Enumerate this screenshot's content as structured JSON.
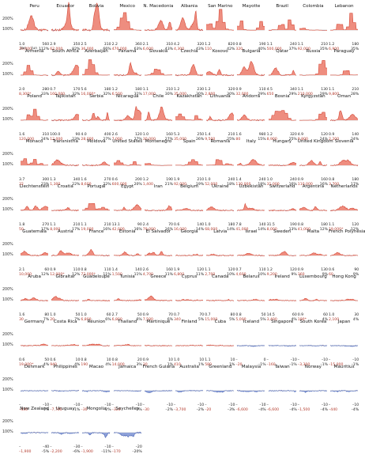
{
  "figure": {
    "y_axis_ticks": [
      "200%",
      "100%"
    ],
    "month_labels": [
      "Jan",
      "Jun"
    ]
  },
  "colors": {
    "blue": "#4b66b6",
    "red": "#d64c3b",
    "blue_fill": "#8fa2d9",
    "red_fill": "#ee8d7f",
    "axis": "#333333",
    "baseline": "#9a9a9a"
  },
  "chart_data": {
    "type": "area",
    "layout": "small-multiples",
    "y_ticks": [
      "200%",
      "100%"
    ],
    "x_ticks": [
      "Jan",
      "Jun"
    ],
    "rows": [
      [
        {
          "name": "Peru",
          "low": "1.0",
          "high": "560",
          "d1": "29,000",
          "d2": "112%"
        },
        {
          "name": "Ecuador",
          "low": "2.9",
          "high": "350",
          "d1": "62,000",
          "d2": "82%"
        },
        {
          "name": "Bolivia",
          "low": "2.5",
          "high": "310",
          "d1": "36,000",
          "d2": "66%"
        },
        {
          "name": "Mexico",
          "low": "2.2",
          "high": "360",
          "d1": "470,000",
          "d2": "63%"
        },
        {
          "name": "N. Macedonia",
          "low": "2.1",
          "high": "310",
          "d1": "6,600",
          "d2": "43%"
        },
        {
          "name": "Albania",
          "low": "4.2",
          "high": "320",
          "d1": "4,300",
          "d2": "43%"
        },
        {
          "name": "San Marino",
          "low": "1.2",
          "high": "820",
          "d1": "110",
          "d2": "42%"
        },
        {
          "name": "Mayotte",
          "low": "0.8",
          "high": "190",
          "d1": "320",
          "d2": "40%"
        },
        {
          "name": "Brazil",
          "low": "1.1",
          "high": "240",
          "d1": "500,000",
          "d2": "37%"
        },
        {
          "name": "Colombia",
          "low": "1.1",
          "high": "210",
          "d1": "92,000",
          "d2": "35%"
        },
        {
          "name": "Lebanon",
          "low": "1.2",
          "high": "180",
          "d1": "6,900",
          "d2": "35%"
        }
      ],
      [
        {
          "name": "Armenia",
          "low": "2.0",
          "high": "280",
          "d1": "8,300*",
          "d2": "33%"
        },
        {
          "name": "South Africa",
          "low": "0.7",
          "high": "170",
          "d1": "160,000",
          "d2": "32%"
        },
        {
          "name": "Azerbaijan",
          "low": "5.6",
          "high": "180",
          "d1": "16,000*",
          "d2": "32%"
        },
        {
          "name": "Panama",
          "low": "1.2",
          "high": "180",
          "d1": "6,500",
          "d2": "31%"
        },
        {
          "name": "Slovakia",
          "low": "1.1",
          "high": "210",
          "d1": "17,000",
          "d2": "30%"
        },
        {
          "name": "Czechia",
          "low": "1.2",
          "high": "230",
          "d1": "35,000",
          "d2": "30%"
        },
        {
          "name": "Kosovo",
          "low": "1.2",
          "high": "320",
          "d1": "2,800",
          "d2": "30%"
        },
        {
          "name": "Bulgaria",
          "low": "0.9",
          "high": "110",
          "d1": "32,000",
          "d2": "29%"
        },
        {
          "name": "Qatar",
          "low": "4.5",
          "high": "340",
          "d1": "650",
          "d2": "29%"
        },
        {
          "name": "Russia",
          "low": "1.1",
          "high": "130",
          "d1": "210,000",
          "d2": "29%"
        },
        {
          "name": "Paraguay",
          "low": "1.1",
          "high": "210",
          "d1": "9,800",
          "d2": "28%"
        }
      ],
      [
        {
          "name": "Poland",
          "low": "1.6",
          "high": "310",
          "d1": "120,000",
          "d2": "24%"
        },
        {
          "name": "Tajikistan",
          "low": "100.0",
          "high": "90",
          "d1": "12,000",
          "d2": "23%"
        },
        {
          "name": "Serbia",
          "low": "4.0",
          "high": "400",
          "d1": "28,000",
          "d2": "27%"
        },
        {
          "name": "Nicaragua",
          "low": "2.6",
          "high": "120",
          "d1": "7,000",
          "d2": "27%"
        },
        {
          "name": "Chile",
          "low": "1.0",
          "high": "160",
          "d1": "30,000",
          "d2": "27%"
        },
        {
          "name": "Kazakhstan",
          "low": "5.3",
          "high": "250",
          "d1": "35,000",
          "d2": "26%"
        },
        {
          "name": "Lithuania",
          "low": "1.4",
          "high": "210",
          "d1": "9,500",
          "d2": "25%"
        },
        {
          "name": "Andorra",
          "low": "1.6",
          "high": "980",
          "d1": "80",
          "d2": "15%"
        },
        {
          "name": "Bosnia",
          "low": "1.2",
          "high": "320",
          "d1": "8,900",
          "d2": "25%"
        },
        {
          "name": "Kyrgyzstan",
          "low": "4.9",
          "high": "120",
          "d1": "9,800",
          "d2": "24%"
        },
        {
          "name": "Oman",
          "low": "0.9",
          "high": "140",
          "d1": "2,200",
          "d2": "24%"
        }
      ],
      [
        {
          "name": "Monaco",
          "low": "3.7",
          "high": "300",
          "d1": "32",
          "d2": "23%"
        },
        {
          "name": "Transnistria",
          "low": "1.3",
          "high": "340",
          "d1": "1,300",
          "d2": "22%"
        },
        {
          "name": "Moldova",
          "low": "1.6",
          "high": "270",
          "d1": "8,600",
          "d2": "22%"
        },
        {
          "name": "United States",
          "low": "0.6",
          "high": "200",
          "d1": "600,000",
          "d2": "20%"
        },
        {
          "name": "Montenegro",
          "low": "1.2",
          "high": "190",
          "d1": "1,400",
          "d2": "21%"
        },
        {
          "name": "Spain",
          "low": "1.9",
          "high": "210",
          "d1": "92,000",
          "d2": "19%"
        },
        {
          "name": "Romania",
          "low": "1.0",
          "high": "240",
          "d1": "52,000",
          "d2": "18%"
        },
        {
          "name": "Italy",
          "low": "1.4",
          "high": "240",
          "d1": "130,000",
          "d2": "18%"
        },
        {
          "name": "Hungary",
          "low": "1.0",
          "high": "240",
          "d1": "31,000",
          "d2": "16%"
        },
        {
          "name": "United Kingdom",
          "low": "0.9",
          "high": "160",
          "d1": "110,000",
          "d2": "16%"
        },
        {
          "name": "Slovenia",
          "low": "0.8",
          "high": "180",
          "d1": "3,700",
          "d2": "17%"
        }
      ],
      [
        {
          "name": "Liechtenstein",
          "low": "1.8",
          "high": "270",
          "d1": "50",
          "d2": "17%"
        },
        {
          "name": "Croatia",
          "low": "1.1",
          "high": "210",
          "d1": "8,000",
          "d2": "17%"
        },
        {
          "name": "Portugal",
          "low": "1.1",
          "high": "210",
          "d1": "19,000",
          "d2": "16%"
        },
        {
          "name": "Egypt",
          "low": "13.1",
          "high": "90",
          "d1": "42,000",
          "d2": "16%"
        },
        {
          "name": "Iran",
          "low": "2.4",
          "high": "70",
          "d1": "79,000",
          "d2": "16%"
        },
        {
          "name": "Belgium",
          "low": "0.6",
          "high": "140",
          "d1": "16,000",
          "d2": "14%"
        },
        {
          "name": "Ukraine",
          "low": "1.0",
          "high": "180",
          "d1": "68,000",
          "d2": "14%"
        },
        {
          "name": "Uzbekistan",
          "low": "7.8",
          "high": "140",
          "d1": "41,000",
          "d2": "14%"
        },
        {
          "name": "Switzerland",
          "low": "31.5",
          "high": "190",
          "d1": "8,000",
          "d2": "13%"
        },
        {
          "name": "Argentina",
          "low": "0.8",
          "high": "180",
          "d1": "41,000",
          "d2": "12%"
        },
        {
          "name": "Netherlands",
          "low": "1.1",
          "high": "120",
          "d1": "19,000*",
          "d2": "12%"
        }
      ],
      [
        {
          "name": "Guatemala",
          "low": "2.1",
          "high": "60",
          "d1": "10,000",
          "d2": "12%"
        },
        {
          "name": "Austria",
          "low": "0.9",
          "high": "110",
          "d1": "12,000*",
          "d2": "12%"
        },
        {
          "name": "France",
          "low": "0.8",
          "high": "110",
          "d1": "72,000*",
          "d2": "11%"
        },
        {
          "name": "Estonia",
          "low": "1.4",
          "high": "140",
          "d1": "1,500",
          "d2": "11%"
        },
        {
          "name": "El Salvador",
          "low": "2.6",
          "high": "160",
          "d1": "4,700",
          "d2": "11%"
        },
        {
          "name": "Georgia",
          "low": "1.9",
          "high": "120",
          "d1": "6,800",
          "d2": "11%"
        },
        {
          "name": "Latvia",
          "low": "1.1",
          "high": "120",
          "d1": "2,700",
          "d2": "10%"
        },
        {
          "name": "Israel",
          "low": "0.7",
          "high": "110",
          "d1": "4,600",
          "d2": "10%"
        },
        {
          "name": "Sweden",
          "low": "1.2",
          "high": "120",
          "d1": "9,200",
          "d2": "9%"
        },
        {
          "name": "Malta",
          "low": "0.9",
          "high": "130",
          "d1": "360",
          "d2": "9%"
        },
        {
          "name": "French Polynesia",
          "low": "0.6",
          "high": "90",
          "d1": "60",
          "d2": "9%"
        }
      ],
      [
        {
          "name": "Aruba",
          "low": "1.6",
          "high": "80",
          "d1": "30",
          "d2": "7%"
        },
        {
          "name": "Gibraltar",
          "low": "1.0",
          "high": "50",
          "d1": "20",
          "d2": "7%"
        },
        {
          "name": "Guadeloupe",
          "low": "1.0",
          "high": "60",
          "d1": "6,800",
          "d2": "6%"
        },
        {
          "name": "Tunisia",
          "low": "2.7",
          "high": "50",
          "d1": "6,800",
          "d2": "6%"
        },
        {
          "name": "Greece",
          "low": "0.9",
          "high": "70",
          "d1": "7,500",
          "d2": "6%"
        },
        {
          "name": "Cyprus",
          "low": "0.7",
          "high": "70",
          "d1": "340",
          "d2": "5%"
        },
        {
          "name": "Canada",
          "low": "0.7",
          "high": "80",
          "d1": "15,000",
          "d2": "5%"
        },
        {
          "name": "Belarus",
          "low": "0.8",
          "high": "50",
          "d1": "5,000",
          "d2": "5%"
        },
        {
          "name": "Ireland",
          "low": "14.5",
          "high": "60",
          "d1": "3,400",
          "d2": "4%"
        },
        {
          "name": "Luxembourg",
          "low": "0.9",
          "high": "60",
          "d1": "190*",
          "d2": "4%"
        },
        {
          "name": "Hong Kong",
          "low": "1.0",
          "high": "30",
          "d1": "2,100",
          "d2": "4%"
        }
      ],
      [
        {
          "name": "Germany",
          "low": "0.6",
          "high": "50",
          "d1": "19,000*",
          "d2": "4%"
        },
        {
          "name": "Costa Rica",
          "low": "0.6",
          "high": "10",
          "d1": "940",
          "d2": "4%"
        },
        {
          "name": "Réunion",
          "low": "0.8",
          "high": "10",
          "d1": "190",
          "d2": "4%"
        },
        {
          "name": "Thailand",
          "low": "0.8",
          "high": "20",
          "d1": "14,000",
          "d2": "3%"
        },
        {
          "name": "Martinique",
          "low": "0.9",
          "high": "10",
          "d1": "30",
          "d2": "1%"
        },
        {
          "name": "Finland",
          "low": "1.0",
          "high": "10",
          "d1": "410",
          "d2": "1%"
        },
        {
          "name": "Cuba",
          "low": "1.1",
          "high": "10",
          "d1": "580",
          "d2": "1%"
        },
        {
          "name": "Iceland",
          "low": "–",
          "high": "0",
          "d1": "–20",
          "d2": "–1%"
        },
        {
          "name": "Singapore",
          "low": "–",
          "high": "–10",
          "d1": "–160",
          "d2": "–1%"
        },
        {
          "name": "South Korea",
          "low": "–",
          "high": "–10",
          "d1": "–3,300",
          "d2": "–1%"
        },
        {
          "name": "Japan",
          "low": "–",
          "high": "–10",
          "d1": "–15,000",
          "d2": "–1%"
        }
      ],
      [
        {
          "name": "Denmark",
          "low": "–",
          "high": "–10",
          "d1": "–430",
          "d2": "–1%"
        },
        {
          "name": "Philippines",
          "low": "–",
          "high": "–10",
          "d1": "–7,700",
          "d2": "–1%"
        },
        {
          "name": "Macao",
          "low": "–",
          "high": "–10",
          "d1": "–30",
          "d2": "–2%"
        },
        {
          "name": "Jamaica",
          "low": "–",
          "high": "–10",
          "d1": "–320",
          "d2": "–2%"
        },
        {
          "name": "French Guiana",
          "low": "–",
          "high": "–10",
          "d1": "–30",
          "d2": "–2%"
        },
        {
          "name": "Australia",
          "low": "–",
          "high": "–10",
          "d1": "–3,700",
          "d2": "–2%"
        },
        {
          "name": "Greenland",
          "low": "–",
          "high": "–10",
          "d1": "–20",
          "d2": "–3%"
        },
        {
          "name": "Malaysia",
          "low": "–",
          "high": "–10",
          "d1": "–6,600",
          "d2": "–4%"
        },
        {
          "name": "Taiwan",
          "low": "–",
          "high": "–10",
          "d1": "–6,600",
          "d2": "–4%"
        },
        {
          "name": "Norway",
          "low": "–",
          "high": "–10",
          "d1": "–1,500",
          "d2": "–4%"
        },
        {
          "name": "Mauritius",
          "low": "–",
          "high": "–10",
          "d1": "–440",
          "d2": "–4%"
        }
      ],
      [
        {
          "name": "New Zealand",
          "low": "–",
          "high": "–40",
          "d1": "–1,900",
          "d2": "–5%"
        },
        {
          "name": "Uruguay",
          "low": "–",
          "high": "–30",
          "d1": "–2,200",
          "d2": "–6%"
        },
        {
          "name": "Mongolia",
          "low": "–",
          "high": "–10",
          "d1": "–1,900",
          "d2": "–11%"
        },
        {
          "name": "Seychelles",
          "low": "–",
          "high": "–20",
          "d1": "–170",
          "d2": "–20%"
        }
      ]
    ]
  }
}
